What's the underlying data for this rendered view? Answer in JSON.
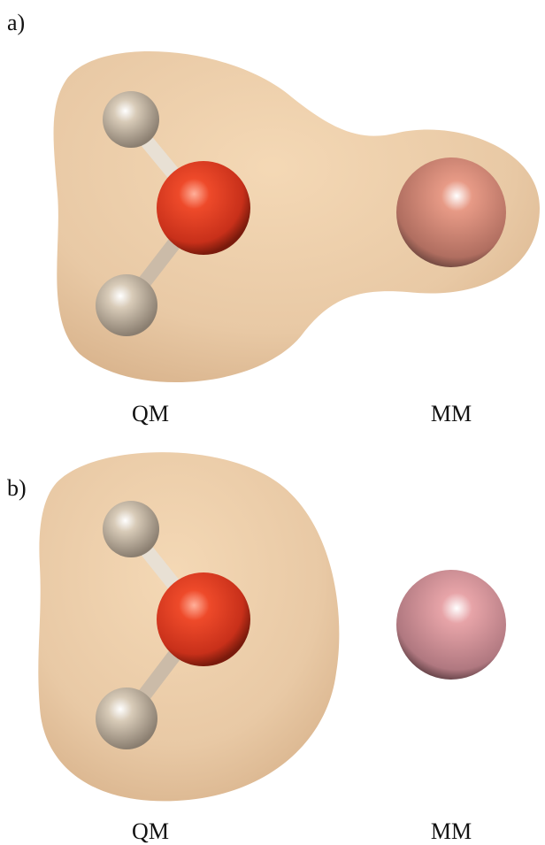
{
  "panels": [
    {
      "label": "a)",
      "qm_label": "QM",
      "mm_label": "MM"
    },
    {
      "label": "b)",
      "qm_label": "QM",
      "mm_label": "MM"
    }
  ]
}
